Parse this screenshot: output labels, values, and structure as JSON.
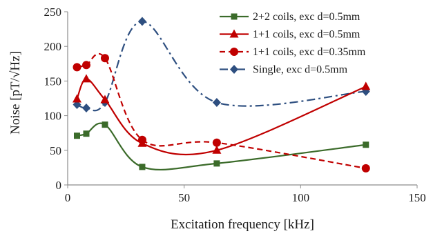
{
  "chart_data": {
    "type": "line",
    "title": "",
    "xlabel": "Excitation frequency [kHz]",
    "ylabel": "Noise [pT/√Hz]",
    "xlim": [
      0,
      150
    ],
    "ylim": [
      0,
      250
    ],
    "xticks": [
      0,
      50,
      100,
      150
    ],
    "yticks": [
      0,
      50,
      100,
      150,
      200,
      250
    ],
    "grid": false,
    "legend_position": "top-right",
    "series": [
      {
        "name": "2+2 coils, exc d=0.5mm",
        "color": "#3b6b2a",
        "marker": "square",
        "line_style": "solid",
        "x": [
          4,
          8,
          16,
          32,
          64,
          128
        ],
        "y": [
          71,
          74,
          87,
          26,
          31,
          58
        ]
      },
      {
        "name": "1+1 coils, exc d=0.5mm",
        "color": "#c00000",
        "marker": "triangle",
        "line_style": "solid",
        "x": [
          4,
          8,
          16,
          32,
          64,
          128
        ],
        "y": [
          124,
          153,
          123,
          60,
          50,
          142
        ]
      },
      {
        "name": "1+1 coils, exc d=0.35mm",
        "color": "#c00000",
        "marker": "circle",
        "line_style": "dashed",
        "x": [
          4,
          8,
          16,
          32,
          64,
          128
        ],
        "y": [
          170,
          173,
          183,
          65,
          61,
          24
        ]
      },
      {
        "name": "Single, exc d=0.5mm",
        "color": "#2e4f80",
        "marker": "diamond",
        "line_style": "dashdot",
        "x": [
          4,
          8,
          16,
          32,
          64,
          128
        ],
        "y": [
          116,
          111,
          119,
          236,
          119,
          135
        ]
      }
    ]
  }
}
